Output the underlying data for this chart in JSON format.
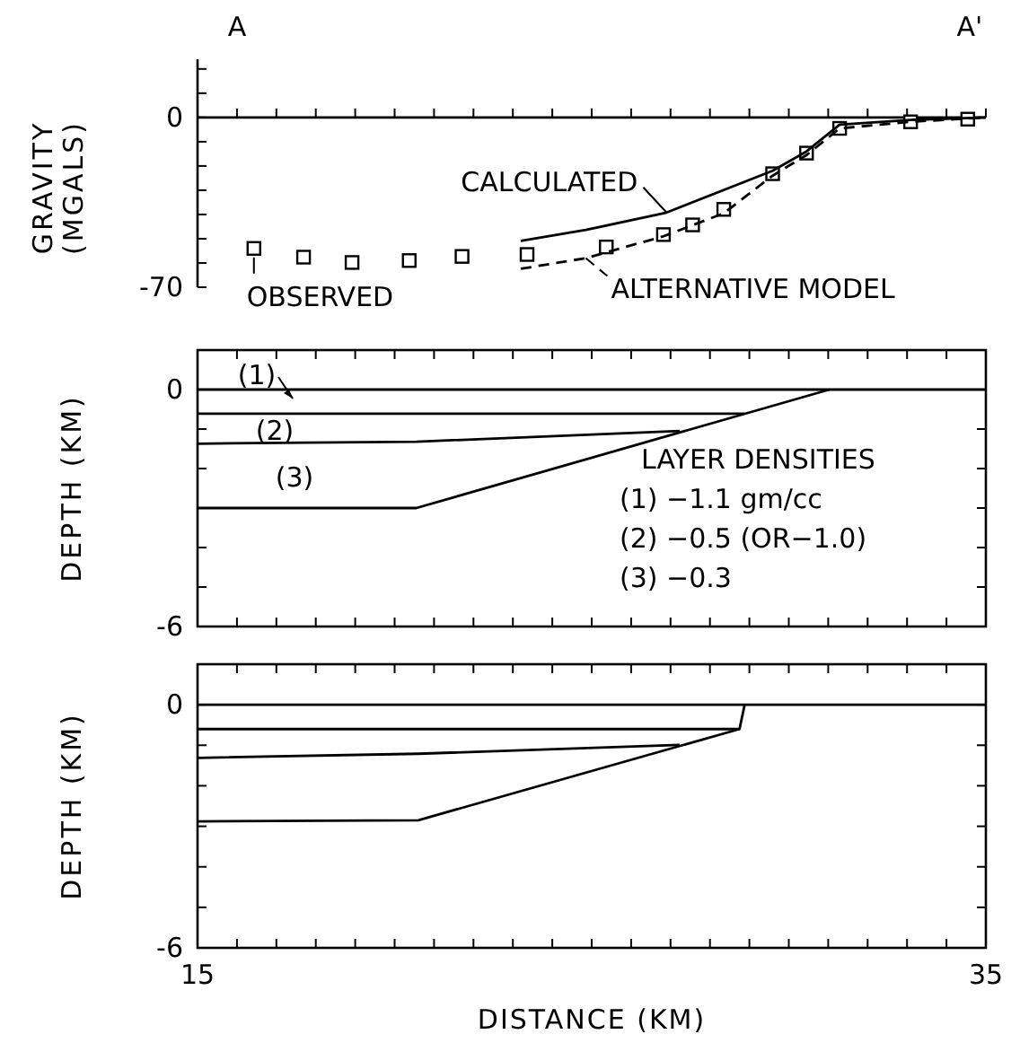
{
  "chart_data": [
    {
      "type": "line",
      "ylabel": "GRAVITY (MGALS)",
      "xlim": [
        15,
        35
      ],
      "ylim": [
        -70,
        24
      ],
      "xticks": [
        {
          "value": 15,
          "label": null
        },
        {
          "value": 16,
          "label": null
        },
        {
          "value": 17,
          "label": null
        },
        {
          "value": 18,
          "label": null
        },
        {
          "value": 19,
          "label": null
        },
        {
          "value": 20,
          "label": null
        },
        {
          "value": 21,
          "label": null
        },
        {
          "value": 22,
          "label": null
        },
        {
          "value": 23,
          "label": null
        },
        {
          "value": 24,
          "label": null
        },
        {
          "value": 25,
          "label": null
        },
        {
          "value": 26,
          "label": null
        },
        {
          "value": 27,
          "label": null
        },
        {
          "value": 28,
          "label": null
        },
        {
          "value": 29,
          "label": null
        },
        {
          "value": 30,
          "label": null
        },
        {
          "value": 31,
          "label": null
        },
        {
          "value": 32,
          "label": null
        },
        {
          "value": 33,
          "label": null
        },
        {
          "value": 34,
          "label": null
        },
        {
          "value": 35,
          "label": null
        }
      ],
      "yticks": [
        -70,
        {
          "value": -60,
          "label": null
        },
        {
          "value": -50,
          "label": null
        },
        {
          "value": -40,
          "label": null
        },
        {
          "value": -30,
          "label": null
        },
        {
          "value": -20,
          "label": null
        },
        {
          "value": -10,
          "label": null
        },
        0,
        {
          "value": 10,
          "label": null
        },
        {
          "value": 20,
          "label": null
        }
      ],
      "tick_labels": "y",
      "legend": "bottom",
      "annotations": [
        "A",
        "A'"
      ],
      "series": [
        {
          "name": "OBSERVED",
          "type": "scatter",
          "marker": "square",
          "color": "#000000",
          "x": [
            16.43,
            17.69,
            18.92,
            20.37,
            21.71,
            23.36,
            25.37,
            26.82,
            27.56,
            28.35,
            29.59,
            30.45,
            31.29,
            33.09,
            34.54
          ],
          "values": [
            -54,
            -57.6,
            -59.8,
            -59,
            -57.3,
            -56.5,
            -53.4,
            -48.3,
            -44.3,
            -37.9,
            -23.2,
            -14.7,
            -4.5,
            -1.8,
            -0.7
          ]
        },
        {
          "name": "CALCULATED",
          "type": "line",
          "line_style": "solid",
          "color": "#000000",
          "x": [
            23.2,
            24.85,
            26.9,
            29.59,
            30.45,
            31.29,
            33.09,
            35
          ],
          "values": [
            -50.9,
            -46.4,
            -39.2,
            -22,
            -14,
            -3,
            -1,
            0
          ]
        },
        {
          "name": "ALTERNATIVE MODEL",
          "type": "line",
          "line_style": "dashed",
          "color": "#000000",
          "x": [
            23.2,
            24.85,
            26.82,
            28.35,
            29.59,
            30.45,
            31.29,
            33.09,
            35
          ],
          "values": [
            -62.4,
            -58,
            -49,
            -39.5,
            -24,
            -15.5,
            -4.5,
            -1.8,
            0
          ]
        }
      ]
    },
    {
      "type": "line",
      "ylabel": "DEPTH (KM)",
      "xlim": [
        15,
        35
      ],
      "ylim": [
        -6,
        1
      ],
      "xticks": [
        {
          "value": 15,
          "label": null
        },
        {
          "value": 16,
          "label": null
        },
        {
          "value": 17,
          "label": null
        },
        {
          "value": 18,
          "label": null
        },
        {
          "value": 19,
          "label": null
        },
        {
          "value": 20,
          "label": null
        },
        {
          "value": 21,
          "label": null
        },
        {
          "value": 22,
          "label": null
        },
        {
          "value": 23,
          "label": null
        },
        {
          "value": 24,
          "label": null
        },
        {
          "value": 25,
          "label": null
        },
        {
          "value": 26,
          "label": null
        },
        {
          "value": 27,
          "label": null
        },
        {
          "value": 28,
          "label": null
        },
        {
          "value": 29,
          "label": null
        },
        {
          "value": 30,
          "label": null
        },
        {
          "value": 31,
          "label": null
        },
        {
          "value": 32,
          "label": null
        },
        {
          "value": 33,
          "label": null
        },
        {
          "value": 34,
          "label": null
        },
        {
          "value": 35,
          "label": null
        }
      ],
      "yticks": [
        -6,
        {
          "value": -5,
          "label": null
        },
        {
          "value": -4,
          "label": null
        },
        {
          "value": -3,
          "label": null
        },
        {
          "value": -2,
          "label": null
        },
        {
          "value": -1,
          "label": null
        },
        0,
        {
          "value": 1,
          "label": null
        }
      ],
      "tick_labels": "y",
      "annotations": [
        "(1)",
        "(2)",
        "(3)",
        "LAYER DENSITIES",
        "(1) −1.1 gm/cc",
        "(2) −0.5 (OR−1.0)",
        "(3) −0.3"
      ],
      "series": [
        {
          "color": "#000000",
          "x": [
            15,
            35
          ],
          "values": [
            0,
            0
          ]
        },
        {
          "color": "#000000",
          "x": [
            15,
            28.88
          ],
          "values": [
            -0.61,
            -0.61
          ]
        },
        {
          "color": "#000000",
          "x": [
            15,
            20.55,
            27.23
          ],
          "values": [
            -1.37,
            -1.32,
            -1.05
          ]
        },
        {
          "color": "#000000",
          "x": [
            15,
            20.55,
            31.03
          ],
          "values": [
            -3,
            -3,
            0
          ]
        }
      ]
    },
    {
      "type": "line",
      "xlabel": "DISTANCE (KM)",
      "ylabel": "DEPTH (KM)",
      "xlim": [
        15,
        35
      ],
      "ylim": [
        -6,
        1
      ],
      "xticks": [
        15,
        {
          "value": 16,
          "label": null
        },
        {
          "value": 17,
          "label": null
        },
        {
          "value": 18,
          "label": null
        },
        {
          "value": 19,
          "label": null
        },
        {
          "value": 20,
          "label": null
        },
        {
          "value": 21,
          "label": null
        },
        {
          "value": 22,
          "label": null
        },
        {
          "value": 23,
          "label": null
        },
        {
          "value": 24,
          "label": null
        },
        {
          "value": 25,
          "label": null
        },
        {
          "value": 26,
          "label": null
        },
        {
          "value": 27,
          "label": null
        },
        {
          "value": 28,
          "label": null
        },
        {
          "value": 29,
          "label": null
        },
        {
          "value": 30,
          "label": null
        },
        {
          "value": 31,
          "label": null
        },
        {
          "value": 32,
          "label": null
        },
        {
          "value": 33,
          "label": null
        },
        {
          "value": 34,
          "label": null
        },
        35
      ],
      "yticks": [
        -6,
        {
          "value": -5,
          "label": null
        },
        {
          "value": -4,
          "label": null
        },
        {
          "value": -3,
          "label": null
        },
        {
          "value": -2,
          "label": null
        },
        {
          "value": -1,
          "label": null
        },
        0,
        {
          "value": 1,
          "label": null
        }
      ],
      "series": [
        {
          "color": "#000000",
          "x": [
            15,
            35
          ],
          "values": [
            0,
            0
          ]
        },
        {
          "color": "#000000",
          "x": [
            15,
            28.75,
            28.88
          ],
          "values": [
            -0.6,
            -0.6,
            0
          ]
        },
        {
          "color": "#000000",
          "x": [
            15,
            20.6,
            27.23
          ],
          "values": [
            -1.31,
            -1.21,
            -0.99
          ]
        },
        {
          "color": "#000000",
          "x": [
            15,
            20.6,
            28.75
          ],
          "values": [
            -2.88,
            -2.85,
            -0.6
          ]
        }
      ]
    }
  ]
}
